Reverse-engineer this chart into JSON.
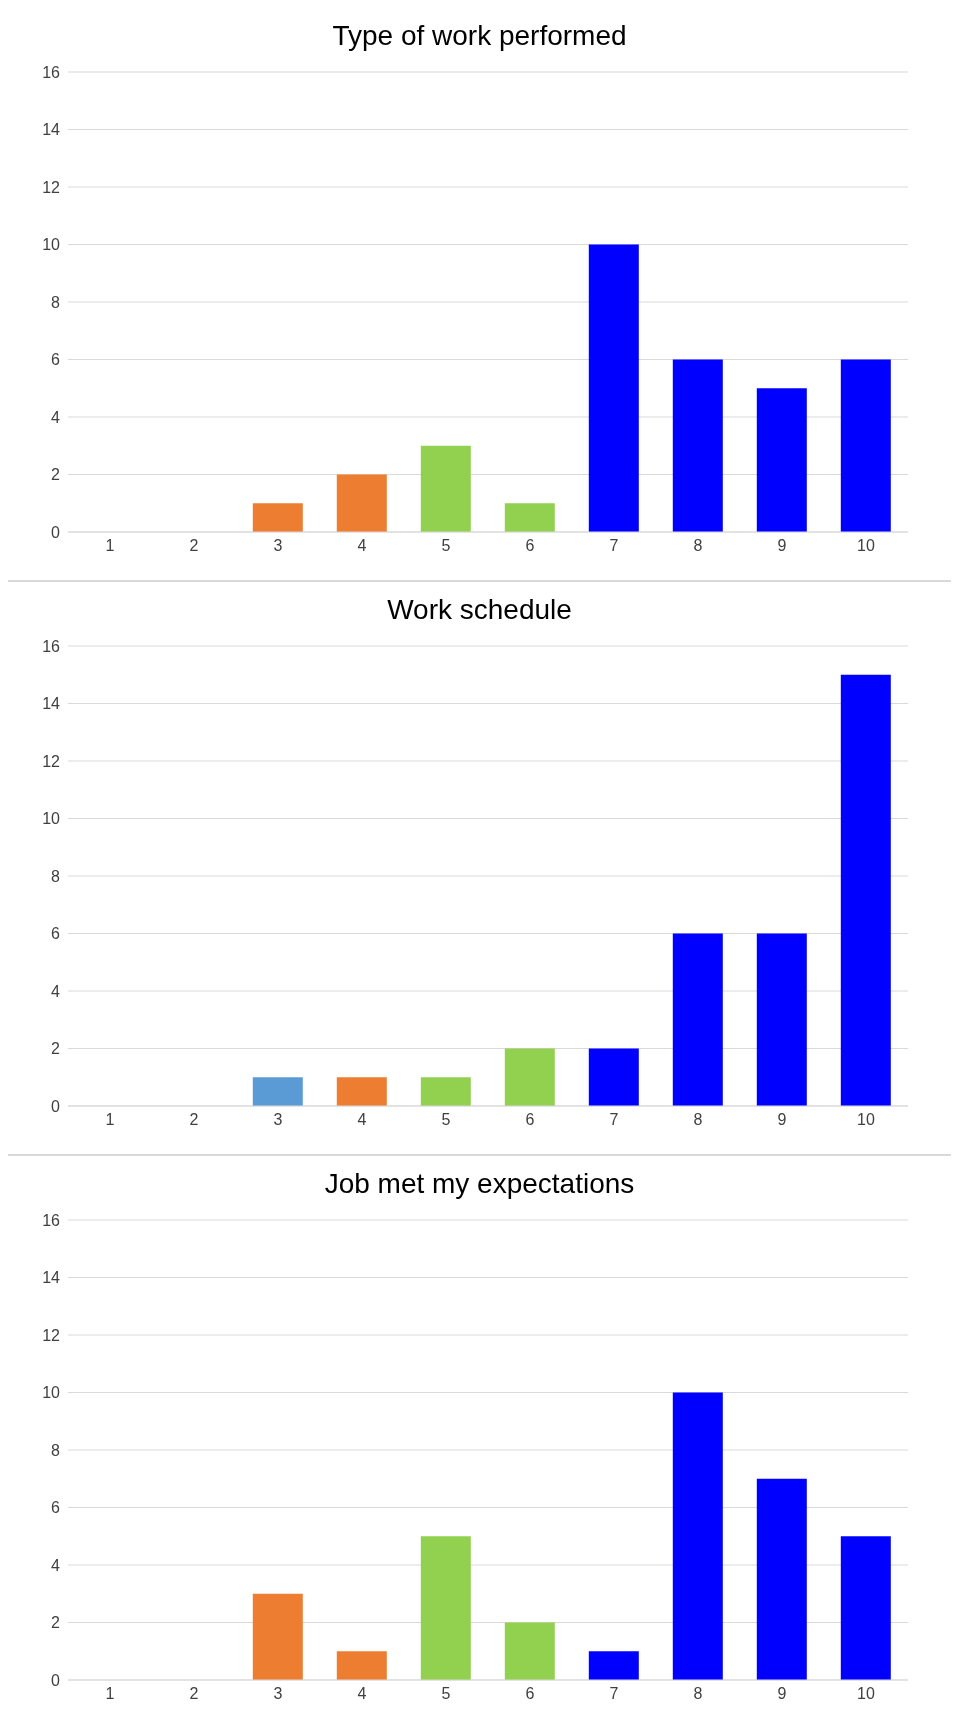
{
  "chart_data": [
    {
      "type": "bar",
      "title": "Type of work performed",
      "categories": [
        "1",
        "2",
        "3",
        "4",
        "5",
        "6",
        "7",
        "8",
        "9",
        "10"
      ],
      "values": [
        0,
        0,
        1,
        2,
        3,
        1,
        10,
        6,
        5,
        6
      ],
      "colors": [
        "#ed7d31",
        "#ed7d31",
        "#ed7d31",
        "#ed7d31",
        "#92d050",
        "#92d050",
        "#0000ff",
        "#0000ff",
        "#0000ff",
        "#0000ff"
      ],
      "ylim": [
        0,
        16
      ],
      "yticks": [
        0,
        2,
        4,
        6,
        8,
        10,
        12,
        14,
        16
      ],
      "grid": "y"
    },
    {
      "type": "bar",
      "title": "Work schedule",
      "categories": [
        "1",
        "2",
        "3",
        "4",
        "5",
        "6",
        "7",
        "8",
        "9",
        "10"
      ],
      "values": [
        0,
        0,
        1,
        1,
        1,
        2,
        2,
        6,
        6,
        15
      ],
      "colors": [
        "#5b9bd5",
        "#5b9bd5",
        "#5b9bd5",
        "#ed7d31",
        "#92d050",
        "#92d050",
        "#0000ff",
        "#0000ff",
        "#0000ff",
        "#0000ff"
      ],
      "ylim": [
        0,
        16
      ],
      "yticks": [
        0,
        2,
        4,
        6,
        8,
        10,
        12,
        14,
        16
      ],
      "grid": "y"
    },
    {
      "type": "bar",
      "title": "Job met my expectations",
      "categories": [
        "1",
        "2",
        "3",
        "4",
        "5",
        "6",
        "7",
        "8",
        "9",
        "10"
      ],
      "values": [
        0,
        0,
        3,
        1,
        5,
        2,
        1,
        10,
        7,
        5
      ],
      "colors": [
        "#ed7d31",
        "#ed7d31",
        "#ed7d31",
        "#ed7d31",
        "#92d050",
        "#92d050",
        "#0000ff",
        "#0000ff",
        "#0000ff",
        "#0000ff"
      ],
      "ylim": [
        0,
        16
      ],
      "yticks": [
        0,
        2,
        4,
        6,
        8,
        10,
        12,
        14,
        16
      ],
      "grid": "y"
    }
  ]
}
